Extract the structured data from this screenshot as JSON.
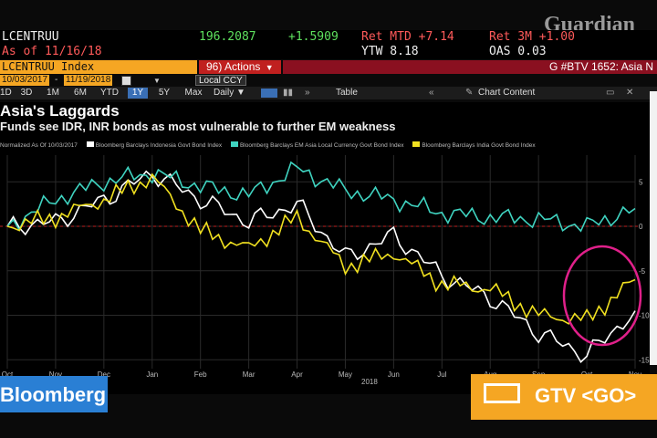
{
  "watermark": "Guardian",
  "quote": {
    "ticker": "LCENTRUU",
    "price": "196.2087",
    "change": "+1.5909",
    "ret_mtd": "Ret MTD +7.14",
    "ret_3m": "Ret 3M +1.00",
    "as_of": "As of  11/16/18",
    "ytw": "YTW 8.18",
    "oas": "OAS 0.03"
  },
  "bars": {
    "security": "LCENTRUU Index",
    "actions": "96) Actions",
    "actions_caret": "▼",
    "btv": "G #BTV 1652: Asia N"
  },
  "dates": {
    "start": "10/03/2017",
    "end": "11/19/2018",
    "ccy": "Local CCY"
  },
  "ranges": [
    "1D",
    "3D",
    "1M",
    "6M",
    "YTD",
    "1Y",
    "5Y",
    "Max"
  ],
  "active_range": "1Y",
  "tools": {
    "freq": "Daily ▼",
    "table": "Table",
    "content": "Chart Content"
  },
  "chart": {
    "title": "Asia's Laggards",
    "subtitle": "Funds see IDR, INR bonds as most vulnerable to further EM weakness",
    "legend_note": "Normalized As Of 10/03/2017"
  },
  "chart_data": {
    "type": "line",
    "x_ticks": [
      "Oct",
      "Nov",
      "Dec",
      "Jan",
      "Feb",
      "Mar",
      "Apr",
      "May",
      "Jun",
      "Jul",
      "Aug",
      "Sep",
      "Oct",
      "Nov"
    ],
    "year_labels": [
      "2018"
    ],
    "y_ticks": [
      5,
      0,
      -5,
      -10,
      -15
    ],
    "ylim": [
      -16,
      8
    ],
    "grid": true,
    "series": [
      {
        "name": "Bloomberg Barclays Indonesia Govt Bond Index",
        "color": "#ffffff",
        "x": [
          0,
          1,
          2,
          3,
          4,
          5,
          6,
          7,
          8,
          9,
          10,
          11,
          12,
          13
        ],
        "values": [
          0,
          0.5,
          3.0,
          6.0,
          3.0,
          0.5,
          2.5,
          -3.5,
          -1.0,
          -5.5,
          -8.0,
          -12.0,
          -14.5,
          -9.5
        ]
      },
      {
        "name": "Bloomberg Barclays EM Asia Local Currency Govt Bond Index",
        "color": "#3fd3c0",
        "x": [
          0,
          1,
          2,
          3,
          4,
          5,
          6,
          7,
          8,
          9,
          10,
          11,
          12,
          13
        ],
        "values": [
          0,
          3.0,
          5.0,
          6.0,
          4.5,
          3.5,
          6.5,
          4.0,
          3.0,
          1.5,
          1.0,
          0.8,
          0.0,
          2.0
        ]
      },
      {
        "name": "Bloomberg Barclays India Govt Bond Index",
        "color": "#f0e020",
        "x": [
          0,
          1,
          2,
          3,
          4,
          5,
          6,
          7,
          8,
          9,
          10,
          11,
          12,
          13
        ],
        "values": [
          0,
          1.0,
          3.0,
          5.5,
          -0.5,
          -2.5,
          1.0,
          -4.5,
          -3.0,
          -6.5,
          -7.0,
          -10.0,
          -10.5,
          -6.0
        ]
      }
    ],
    "annotations": [
      "Circle highlighting the Oct–Nov recovery of the Indonesia and India indices"
    ]
  },
  "overlays": {
    "bloomberg": "Bloomberg",
    "gtv": "GTV <GO>"
  },
  "colors": {
    "orange": "#f5a623",
    "red": "#c0201f",
    "bg": "#000000",
    "circle": "#e0208a"
  }
}
